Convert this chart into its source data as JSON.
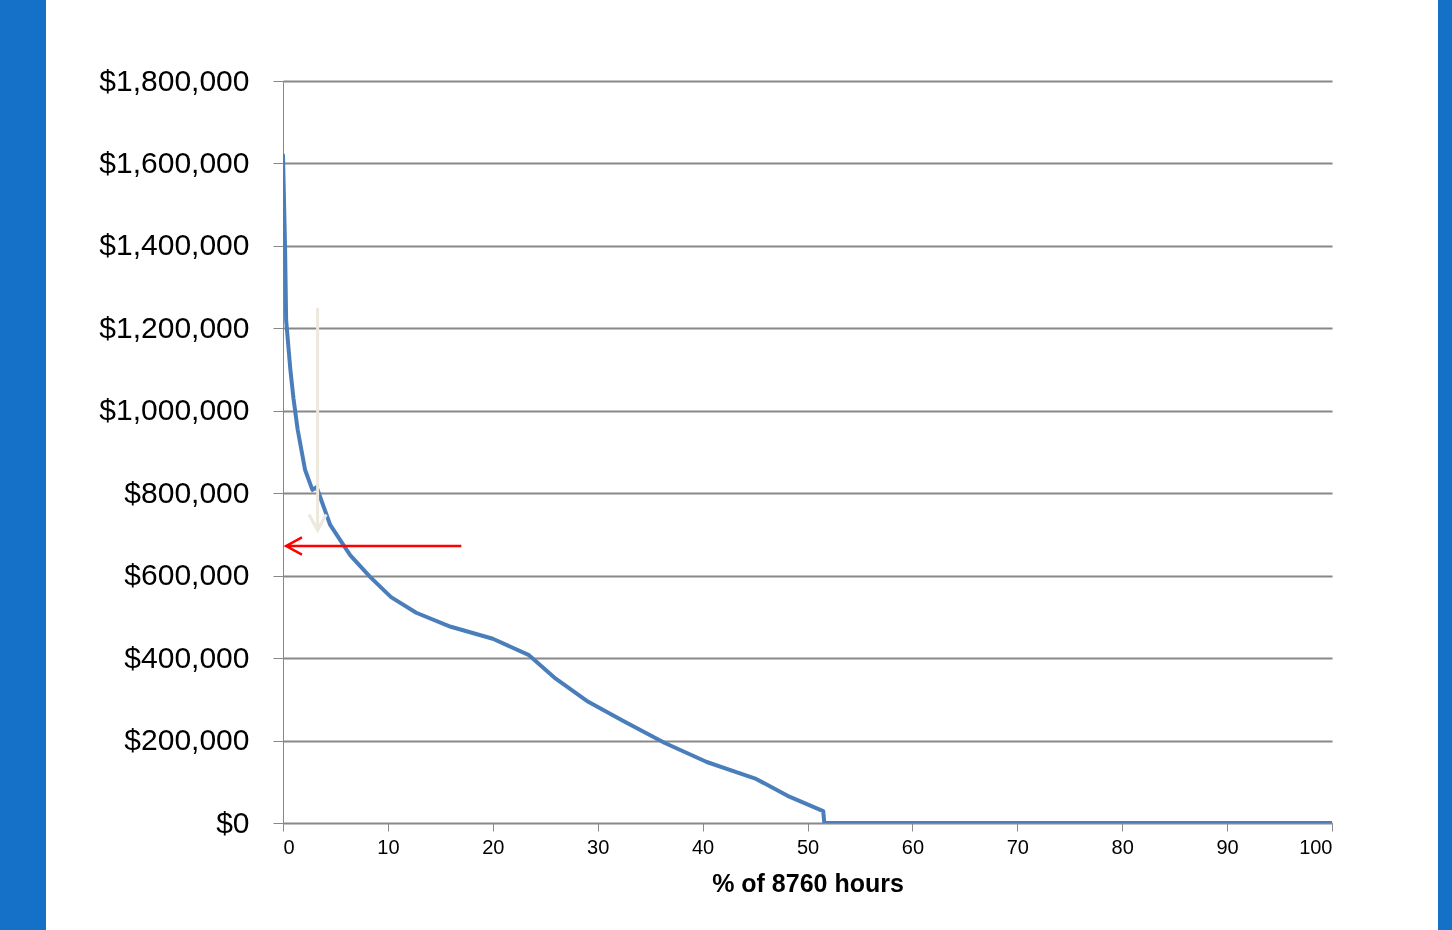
{
  "chart_data": {
    "type": "line",
    "xlabel": "% of 8760 hours",
    "x": [
      0,
      0.2,
      0.3,
      0.7,
      1.0,
      1.4,
      2.1,
      2.8,
      3.2,
      4.5,
      6.4,
      8.3,
      10.3,
      12.7,
      16.0,
      20.0,
      23.4,
      26.0,
      29.1,
      32.4,
      36.4,
      40.4,
      45.1,
      48.1,
      51.5,
      51.6,
      100
    ],
    "series": [
      {
        "color": "#4a7ebb",
        "values": [
          1620000,
          1390000,
          1220000,
          1100000,
          1030000,
          954000,
          857000,
          808000,
          815000,
          723000,
          650000,
          597000,
          548000,
          510000,
          476000,
          447000,
          408000,
          350000,
          294000,
          248000,
          194000,
          148000,
          107000,
          66000,
          29000,
          0,
          0
        ]
      }
    ],
    "xlim": [
      0,
      100
    ],
    "xticks": [
      0,
      10,
      20,
      30,
      40,
      50,
      60,
      70,
      80,
      90,
      100
    ],
    "ylim": [
      0,
      1800000
    ],
    "yticks": [
      {
        "value": 0,
        "label": "$0"
      },
      {
        "value": 200000,
        "label": "$200,000"
      },
      {
        "value": 400000,
        "label": "$400,000"
      },
      {
        "value": 600000,
        "label": "$600,000"
      },
      {
        "value": 800000,
        "label": "$800,000"
      },
      {
        "value": 1000000,
        "label": "$1,000,000"
      },
      {
        "value": 1200000,
        "label": "$1,200,000"
      },
      {
        "value": 1400000,
        "label": "$1,400,000"
      },
      {
        "value": 1600000,
        "label": "$1,600,000"
      },
      {
        "value": 1800000,
        "label": "$1,800,000"
      }
    ],
    "grid": "y",
    "marker": "none",
    "line_style": "solid",
    "legend": false
  }
}
